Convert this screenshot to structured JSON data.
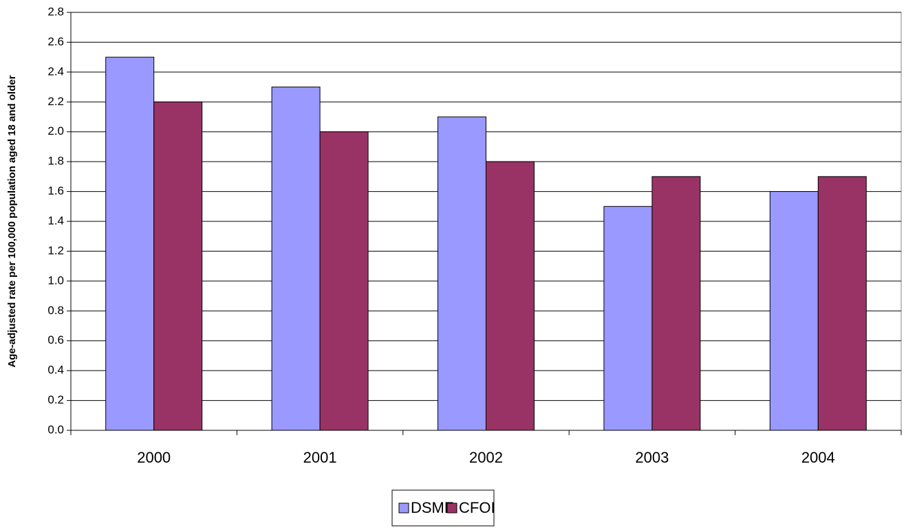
{
  "chart_data": {
    "type": "bar",
    "y_label": "Age-adjusted rate per 100,000 population aged 18 and older",
    "categories": [
      "2000",
      "2001",
      "2002",
      "2003",
      "2004"
    ],
    "series": [
      {
        "name": "DSMF",
        "color": "#9999ff",
        "values": [
          2.5,
          2.3,
          2.1,
          1.5,
          1.6
        ]
      },
      {
        "name": "CFOI",
        "color": "#993366",
        "values": [
          2.2,
          2.0,
          1.8,
          1.7,
          1.7
        ]
      }
    ],
    "ylim": [
      0,
      2.8
    ],
    "yticks": [
      {
        "value": 0,
        "label": "0.0"
      },
      0.2,
      0.4,
      0.6,
      0.8,
      {
        "value": 1,
        "label": "1.0"
      },
      1.2,
      1.4,
      1.6,
      1.8,
      {
        "value": 2,
        "label": "2.0"
      },
      2.2,
      2.4,
      2.6,
      2.8
    ],
    "grid": true,
    "legend": "bottom"
  }
}
